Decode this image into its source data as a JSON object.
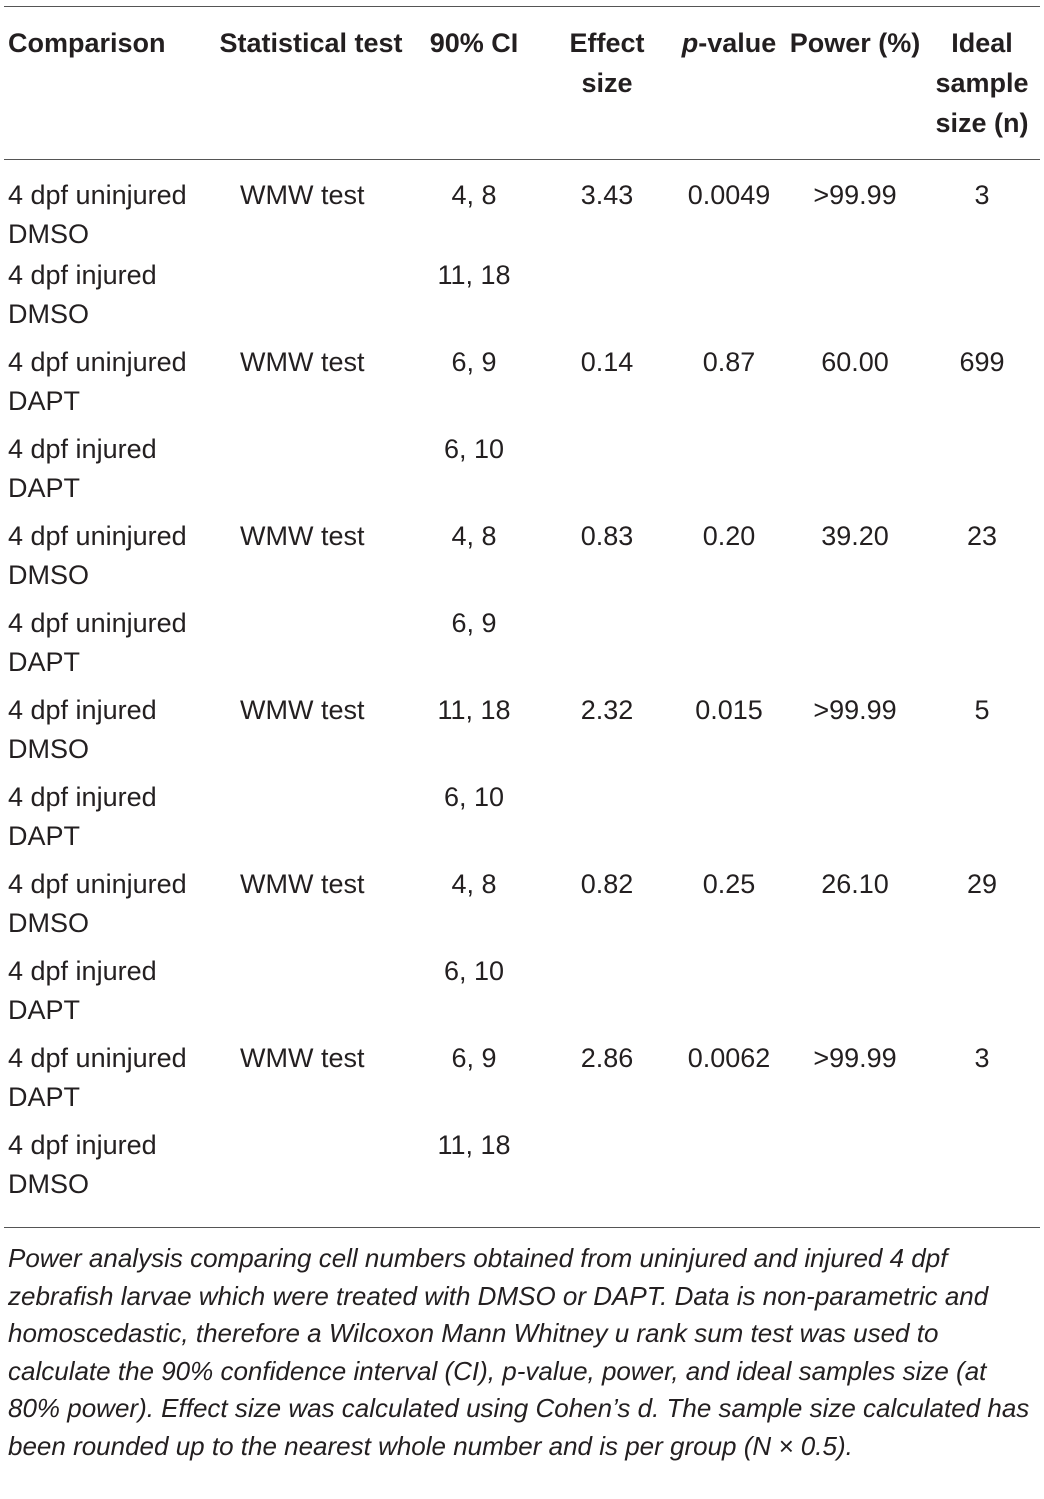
{
  "table": {
    "headers": {
      "comparison": "Comparison",
      "statistical_test": "Statistical test",
      "ci": "90% CI",
      "effect_size": "Effect size",
      "p_value_italic": "p",
      "p_value_rest": "-value",
      "power": "Power (%)",
      "ideal_sample": "Ideal sample size (n)"
    },
    "rows": [
      {
        "comparison": "4 dpf uninjured DMSO",
        "test": "WMW test",
        "ci": "4, 8",
        "effect": "3.43",
        "p": "0.0049",
        "power": ">99.99",
        "n": "3"
      },
      {
        "comparison": "4 dpf injured DMSO",
        "test": "",
        "ci": "11, 18",
        "effect": "",
        "p": "",
        "power": "",
        "n": ""
      },
      {
        "comparison": "4 dpf uninjured DAPT",
        "test": "WMW test",
        "ci": "6, 9",
        "effect": "0.14",
        "p": "0.87",
        "power": "60.00",
        "n": "699"
      },
      {
        "comparison": "4 dpf injured DAPT",
        "test": "",
        "ci": "6, 10",
        "effect": "",
        "p": "",
        "power": "",
        "n": ""
      },
      {
        "comparison": "4 dpf uninjured DMSO",
        "test": "WMW test",
        "ci": "4, 8",
        "effect": "0.83",
        "p": "0.20",
        "power": "39.20",
        "n": "23"
      },
      {
        "comparison": "4 dpf uninjured DAPT",
        "test": "",
        "ci": "6, 9",
        "effect": "",
        "p": "",
        "power": "",
        "n": ""
      },
      {
        "comparison": "4 dpf injured DMSO",
        "test": "WMW test",
        "ci": "11, 18",
        "effect": "2.32",
        "p": "0.015",
        "power": ">99.99",
        "n": "5"
      },
      {
        "comparison": "4 dpf injured DAPT",
        "test": "",
        "ci": "6, 10",
        "effect": "",
        "p": "",
        "power": "",
        "n": ""
      },
      {
        "comparison": "4 dpf uninjured DMSO",
        "test": "WMW test",
        "ci": "4, 8",
        "effect": "0.82",
        "p": "0.25",
        "power": "26.10",
        "n": "29"
      },
      {
        "comparison": "4 dpf injured DAPT",
        "test": "",
        "ci": "6, 10",
        "effect": "",
        "p": "",
        "power": "",
        "n": ""
      },
      {
        "comparison": "4 dpf uninjured DAPT",
        "test": "WMW test",
        "ci": "6, 9",
        "effect": "2.86",
        "p": "0.0062",
        "power": ">99.99",
        "n": "3"
      },
      {
        "comparison": "4 dpf injured DMSO",
        "test": "",
        "ci": "11, 18",
        "effect": "",
        "p": "",
        "power": "",
        "n": ""
      }
    ]
  },
  "caption": "Power analysis comparing cell numbers obtained from uninjured and injured 4 dpf zebrafish larvae which were treated with DMSO or DAPT. Data is non-parametric and homoscedastic, therefore a Wilcoxon Mann Whitney u rank sum test was used to calculate the 90% confidence interval (CI), p-value, power, and ideal samples size (at 80% power). Effect size was calculated using Cohen’s d. The sample size calculated has been rounded up to the nearest whole number and is per group (N × 0.5)."
}
